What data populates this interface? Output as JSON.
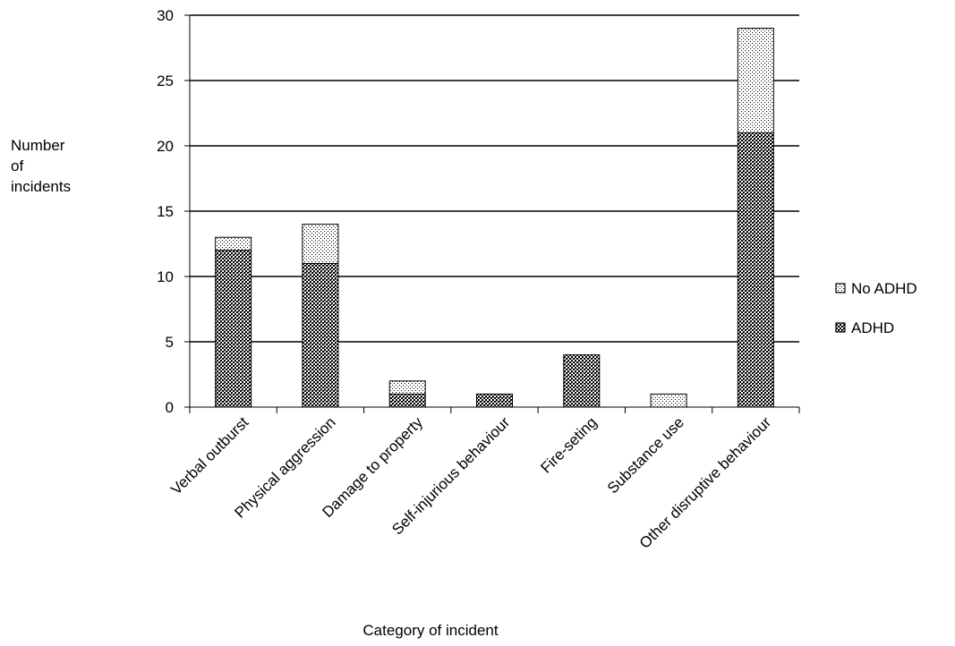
{
  "chart_data": {
    "type": "bar",
    "stacked": true,
    "categories": [
      "Verbal outburst",
      "Physical aggression",
      "Damage to property",
      "Self-injurious behaviour",
      "Fire-seting",
      "Substance use",
      "Other disruptive behaviour"
    ],
    "series": [
      {
        "name": "ADHD",
        "values": [
          12,
          11,
          1,
          1,
          4,
          0,
          21
        ],
        "pattern": "dense-checker"
      },
      {
        "name": "No ADHD",
        "values": [
          1,
          3,
          1,
          0,
          0,
          1,
          8
        ],
        "pattern": "sparse-dots"
      }
    ],
    "xlabel": "Category of incident",
    "ylabel": [
      "Number",
      "of",
      "incidents"
    ],
    "ylim": [
      0,
      30
    ],
    "yticks": [
      0,
      5,
      10,
      15,
      20,
      25,
      30
    ],
    "grid": true,
    "legend_position": "right",
    "legend_order": [
      "No ADHD",
      "ADHD"
    ]
  }
}
